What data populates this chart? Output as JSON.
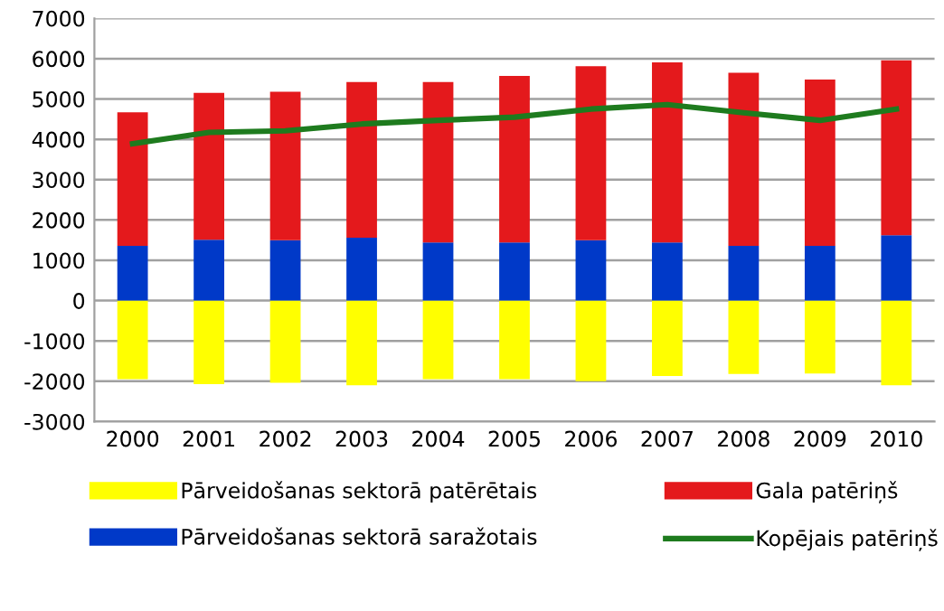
{
  "chart_data": {
    "type": "bar",
    "stacked": true,
    "categories": [
      "2000",
      "2001",
      "2002",
      "2003",
      "2004",
      "2005",
      "2006",
      "2007",
      "2008",
      "2009",
      "2010"
    ],
    "series": [
      {
        "name": "Pārveidošanas sektorā patērētais",
        "color": "#ffff00",
        "values": [
          -1950,
          -2070,
          -2040,
          -2100,
          -1950,
          -1950,
          -2000,
          -1870,
          -1820,
          -1810,
          -2100
        ]
      },
      {
        "name": "Pārveidošanas sektorā saražotais",
        "color": "#0039c8",
        "values": [
          1360,
          1510,
          1500,
          1560,
          1440,
          1440,
          1500,
          1440,
          1360,
          1360,
          1620
        ]
      },
      {
        "name": "Gala patēriņš",
        "color": "#e4191c",
        "values": [
          3310,
          3640,
          3680,
          3860,
          3980,
          4130,
          4310,
          4470,
          4290,
          4120,
          4340
        ]
      },
      {
        "name": "Kopējais patēriņš",
        "type": "line",
        "color": "#1e7b1e",
        "values": [
          3890,
          4170,
          4210,
          4380,
          4470,
          4550,
          4750,
          4860,
          4660,
          4470,
          4750
        ]
      }
    ],
    "ylim": [
      -3000,
      7000
    ],
    "yticks": [
      -3000,
      -2000,
      -1000,
      0,
      1000,
      2000,
      3000,
      4000,
      5000,
      6000,
      7000
    ],
    "grid": "y",
    "legend": "bottom",
    "marker": "none",
    "line_style": "solid"
  }
}
